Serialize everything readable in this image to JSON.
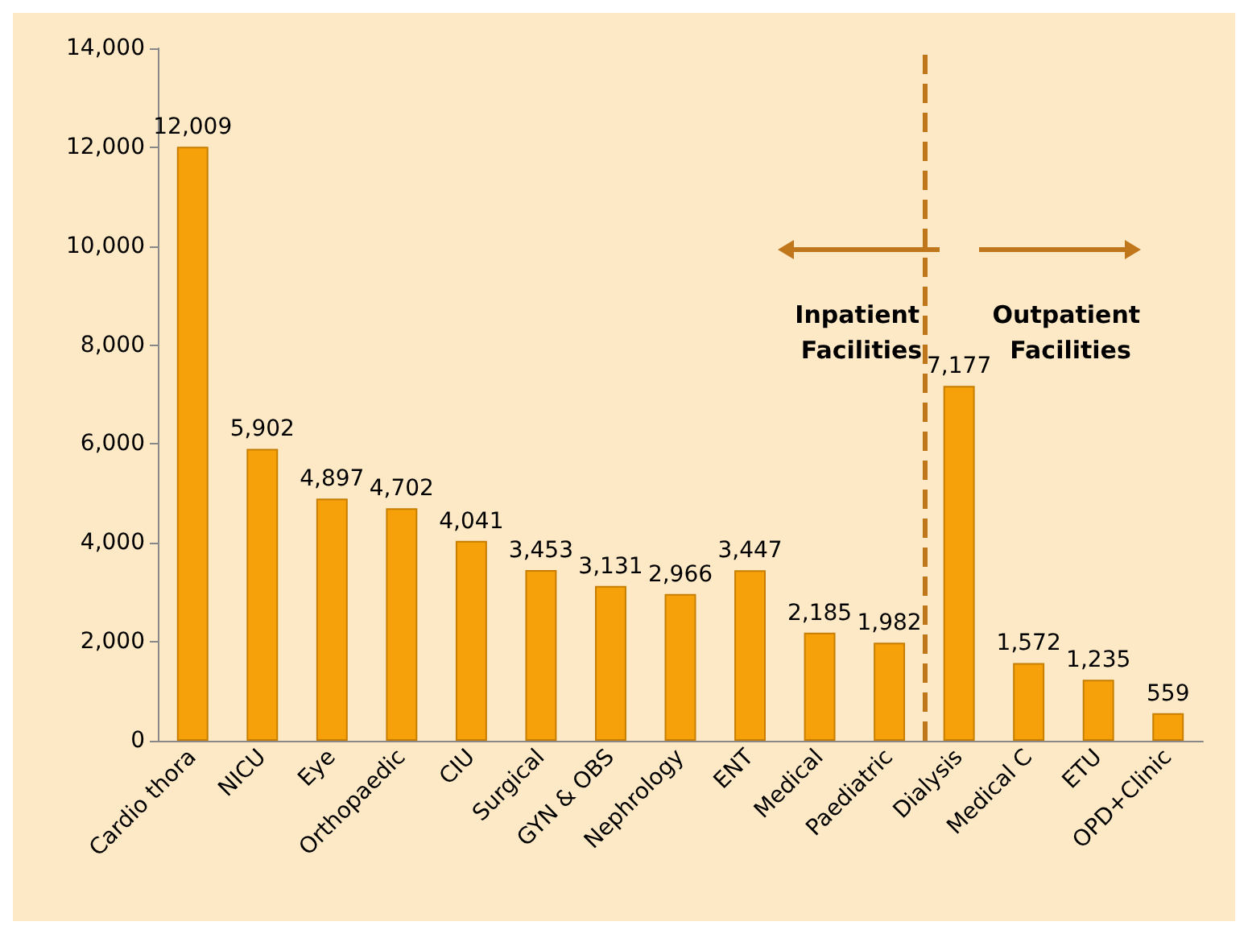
{
  "chart_data": {
    "type": "bar",
    "categories": [
      "Cardio thora",
      "NICU",
      "Eye",
      "Orthopaedic",
      "CIU",
      "Surgical",
      "GYN & OBS",
      "Nephrology",
      "ENT",
      "Medical",
      "Paediatric",
      "Dialysis",
      "Medical C",
      "ETU",
      "OPD+Clinic"
    ],
    "values": [
      12009,
      5902,
      4897,
      4702,
      4041,
      3453,
      3131,
      2966,
      3447,
      2185,
      1982,
      7177,
      1572,
      1235,
      559
    ],
    "value_labels": [
      "12,009",
      "5,902",
      "4,897",
      "4,702",
      "4,041",
      "3,453",
      "3,131",
      "2,966",
      "3,447",
      "2,185",
      "1,982",
      "7,177",
      "1,572",
      "1,235",
      "559"
    ],
    "color": "#f7a10a",
    "ylim": [
      0,
      14000
    ],
    "yticks": [
      0,
      {
        "value": 2000,
        "label": "2,000"
      },
      {
        "value": 4000,
        "label": "4,000"
      },
      {
        "value": 6000,
        "label": "6,000"
      },
      {
        "value": 8000,
        "label": "8,000"
      },
      {
        "value": 10000,
        "label": "10,000"
      },
      {
        "value": 12000,
        "label": "12,000"
      },
      {
        "value": 14000,
        "label": "14,000"
      }
    ],
    "grid": false,
    "ref_lines": [
      {
        "axis": "x",
        "value": "Dialysis",
        "line_style": "dashed",
        "color": "#c0761a"
      }
    ],
    "annotations": [
      "Inpatient Facilities",
      "Outpatient Facilities"
    ]
  }
}
